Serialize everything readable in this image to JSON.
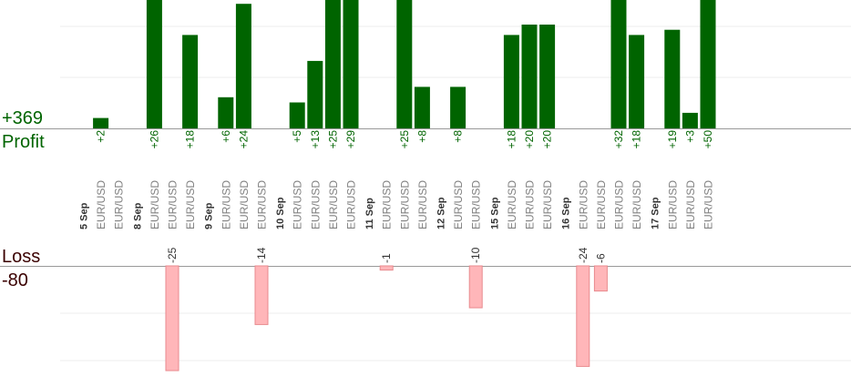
{
  "summary": {
    "profit_total": "+369",
    "profit_label": "Profit",
    "loss_label": "Loss",
    "loss_total": "-80"
  },
  "colors": {
    "profit_bar": "#006400",
    "profit_text": "#006400",
    "loss_bar": "#ffb6b9",
    "loss_bar_stroke": "#e88a8e",
    "loss_text": "#3a0000",
    "symbol_text": "#808080",
    "date_text": "#333333",
    "grid": "#eeeeee",
    "axis": "#999999"
  },
  "chart_data": {
    "type": "bar",
    "ylim_profit": [
      0,
      25
    ],
    "ylim_loss": [
      -25,
      0
    ],
    "grid": true,
    "slots": [
      {
        "date": "5 Sep"
      },
      {
        "symbol": "EUR/USD",
        "value": 2,
        "label": "+2"
      },
      {
        "symbol": "EUR/USD"
      },
      {
        "date": "8 Sep"
      },
      {
        "symbol": "EUR/USD",
        "value": 26,
        "label": "+26"
      },
      {
        "symbol": "EUR/USD",
        "value": -25,
        "label": "-25"
      },
      {
        "symbol": "EUR/USD",
        "value": 18,
        "label": "+18"
      },
      {
        "date": "9 Sep"
      },
      {
        "symbol": "EUR/USD",
        "value": 6,
        "label": "+6"
      },
      {
        "symbol": "EUR/USD",
        "value": 24,
        "label": "+24"
      },
      {
        "symbol": "EUR/USD",
        "value": -14,
        "label": "-14"
      },
      {
        "date": "10 Sep"
      },
      {
        "symbol": "EUR/USD",
        "value": 5,
        "label": "+5"
      },
      {
        "symbol": "EUR/USD",
        "value": 13,
        "label": "+13"
      },
      {
        "symbol": "EUR/USD",
        "value": 25,
        "label": "+25"
      },
      {
        "symbol": "EUR/USD",
        "value": 29,
        "label": "+29"
      },
      {
        "date": "11 Sep"
      },
      {
        "symbol": "EUR/USD",
        "value": -1,
        "label": "-1"
      },
      {
        "symbol": "EUR/USD",
        "value": 25,
        "label": "+25"
      },
      {
        "symbol": "EUR/USD",
        "value": 8,
        "label": "+8"
      },
      {
        "date": "12 Sep"
      },
      {
        "symbol": "EUR/USD",
        "value": 8,
        "label": "+8"
      },
      {
        "symbol": "EUR/USD",
        "value": -10,
        "label": "-10"
      },
      {
        "date": "15 Sep"
      },
      {
        "symbol": "EUR/USD",
        "value": 18,
        "label": "+18"
      },
      {
        "symbol": "EUR/USD",
        "value": 20,
        "label": "+20"
      },
      {
        "symbol": "EUR/USD",
        "value": 20,
        "label": "+20"
      },
      {
        "date": "16 Sep"
      },
      {
        "symbol": "EUR/USD",
        "value": -24,
        "label": "-24"
      },
      {
        "symbol": "EUR/USD",
        "value": -6,
        "label": "-6"
      },
      {
        "symbol": "EUR/USD",
        "value": 32,
        "label": "+32"
      },
      {
        "symbol": "EUR/USD",
        "value": 18,
        "label": "+18"
      },
      {
        "date": "17 Sep"
      },
      {
        "symbol": "EUR/USD",
        "value": 19,
        "label": "+19"
      },
      {
        "symbol": "EUR/USD",
        "value": 3,
        "label": "+3"
      },
      {
        "symbol": "EUR/USD",
        "value": 50,
        "label": "+50"
      }
    ]
  }
}
